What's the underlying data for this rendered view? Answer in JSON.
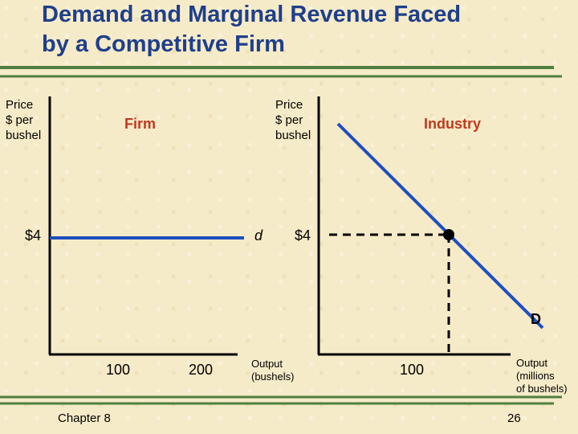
{
  "slide": {
    "title_line1": "Demand and Marginal Revenue Faced",
    "title_line2": "by a Competitive Firm",
    "footer_left": "Chapter 8",
    "page_number": "26"
  },
  "firm_panel": {
    "panel_label": "Firm",
    "y_axis_label_line1": "Price",
    "y_axis_label_line2": "$ per",
    "y_axis_label_line3": "bushel",
    "price_tick": "$4",
    "curve_label": "d",
    "x_ticks": [
      "100",
      "200"
    ],
    "x_axis_label_line1": "Output",
    "x_axis_label_line2": "(bushels)"
  },
  "industry_panel": {
    "panel_label": "Industry",
    "y_axis_label_line1": "Price",
    "y_axis_label_line2": "$ per",
    "y_axis_label_line3": "bushel",
    "price_tick": "$4",
    "curve_label": "D",
    "x_tick": "100",
    "x_axis_label_line1": "Output",
    "x_axis_label_line2": "(millions",
    "x_axis_label_line3": "of bushels)"
  },
  "colors": {
    "title": "#1f3f8a",
    "curve": "#1f4fbf",
    "panel_label": "#c0381e",
    "rule": "#4f7f3f"
  }
}
